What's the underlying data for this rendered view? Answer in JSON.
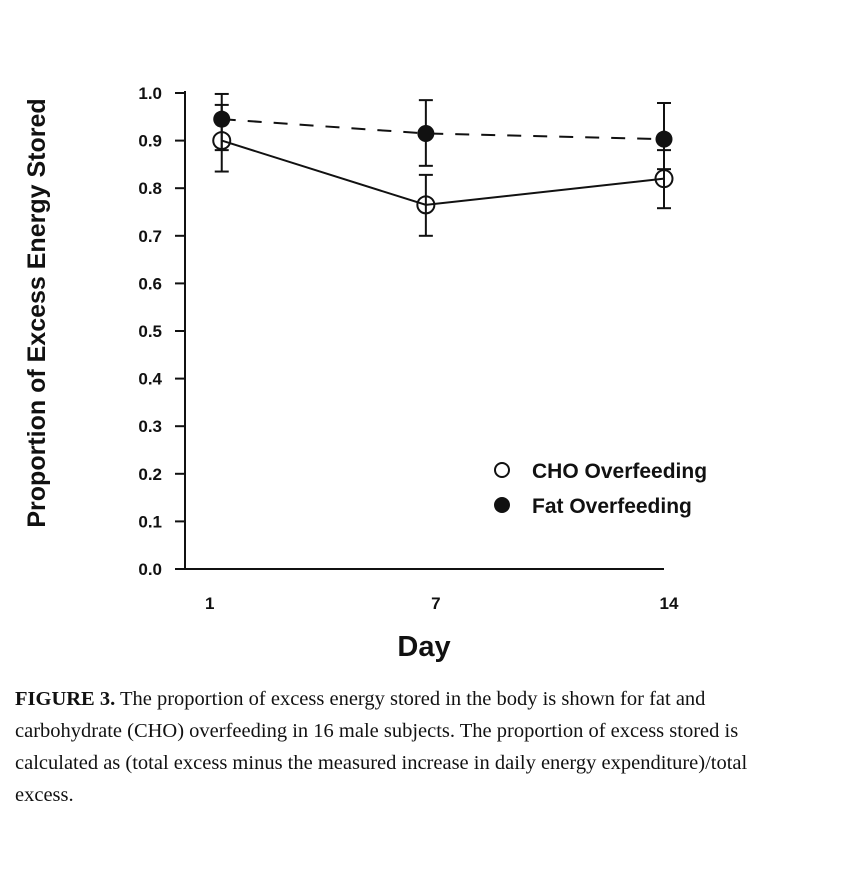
{
  "chart_data": {
    "type": "line",
    "title": "",
    "xlabel": "Day",
    "ylabel": "Proportion of Excess Energy Stored",
    "x": [
      1,
      7,
      14
    ],
    "x_ticks": [
      "1",
      "7",
      "14"
    ],
    "y_ticks": [
      "0.0",
      "0.1",
      "0.2",
      "0.3",
      "0.4",
      "0.5",
      "0.6",
      "0.7",
      "0.8",
      "0.9",
      "1.0"
    ],
    "xlim": [
      -0.08,
      14
    ],
    "ylim": [
      0,
      1.0
    ],
    "grid": false,
    "legend_position": "bottom-right",
    "series": [
      {
        "name": "CHO Overfeeding",
        "marker": "open-circle",
        "line": "solid",
        "values": [
          0.9,
          0.765,
          0.82
        ],
        "err_low": [
          0.835,
          0.7,
          0.758
        ],
        "err_high": [
          0.975,
          0.828,
          0.88
        ]
      },
      {
        "name": "Fat Overfeeding",
        "marker": "filled-circle",
        "line": "dashed",
        "values": [
          0.945,
          0.915,
          0.903
        ],
        "err_low": [
          0.88,
          0.847,
          0.84
        ],
        "err_high": [
          0.998,
          0.985,
          0.979
        ]
      }
    ]
  },
  "caption": {
    "label": "FIGURE 3.",
    "text": " The proportion of excess energy stored in the body is shown for fat and carbohydrate (CHO) overfeeding in 16 male subjects. The proportion of excess stored is calculated as (total excess minus the measured increase in daily energy expenditure)/total excess."
  }
}
